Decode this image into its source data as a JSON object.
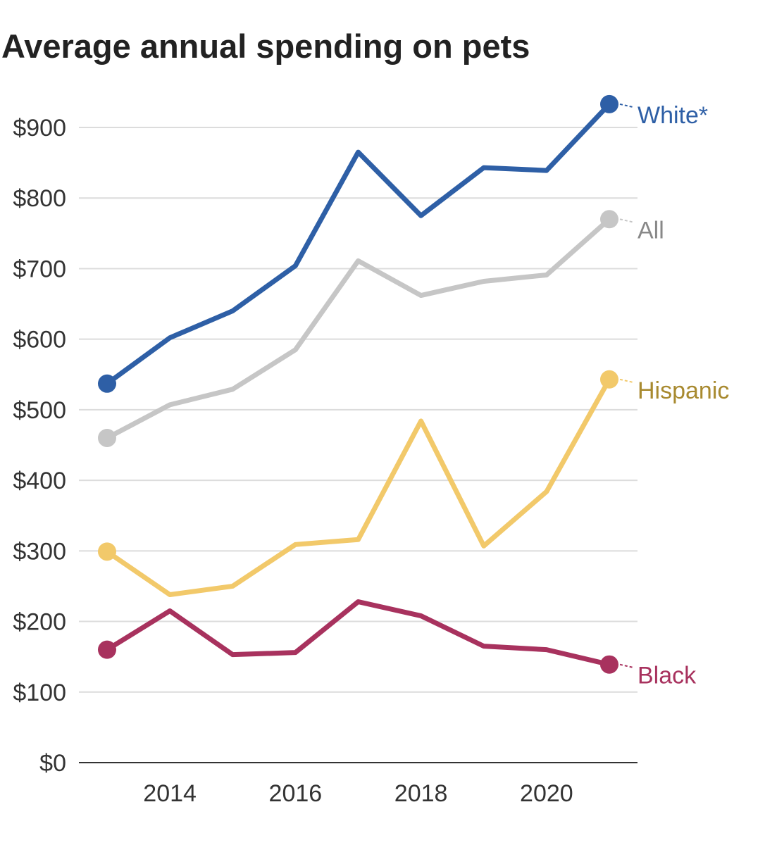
{
  "chart_data": {
    "type": "line",
    "title": "Average annual spending on pets",
    "x": [
      2013,
      2014,
      2015,
      2016,
      2017,
      2018,
      2019,
      2020,
      2021
    ],
    "xticks": [
      2014,
      2016,
      2018,
      2020
    ],
    "yticks": [
      0,
      100,
      200,
      300,
      400,
      500,
      600,
      700,
      800,
      900
    ],
    "ytick_labels": [
      "$0",
      "$100",
      "$200",
      "$300",
      "$400",
      "$500",
      "$600",
      "$700",
      "$800",
      "$900"
    ],
    "ylim": [
      0,
      900
    ],
    "grid": true,
    "series": [
      {
        "name": "White*",
        "color": "#2e5fa6",
        "label_color": "#2e5fa6",
        "values": [
          537,
          602,
          640,
          704,
          865,
          775,
          843,
          839,
          933
        ]
      },
      {
        "name": "All",
        "color": "#c6c6c6",
        "label_color": "#888888",
        "values": [
          460,
          507,
          529,
          585,
          711,
          662,
          682,
          691,
          770
        ]
      },
      {
        "name": "Hispanic",
        "color": "#f2c96a",
        "label_color": "#a88a30",
        "values": [
          299,
          238,
          250,
          309,
          316,
          484,
          307,
          384,
          543
        ]
      },
      {
        "name": "Black",
        "color": "#a8325e",
        "label_color": "#a8325e",
        "values": [
          160,
          215,
          153,
          156,
          228,
          208,
          165,
          160,
          139
        ]
      }
    ]
  }
}
